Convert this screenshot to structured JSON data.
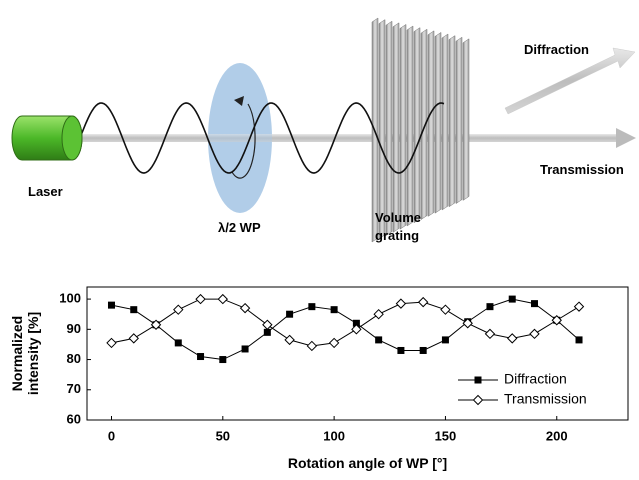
{
  "diagram": {
    "laser": "Laser",
    "waveplate": "λ/2 WP",
    "grating": [
      "Volume",
      "grating"
    ],
    "diffraction": "Diffraction",
    "transmission": "Transmission"
  },
  "chart_data": {
    "type": "line",
    "ylabel": [
      "Normalized",
      "intensity [%]"
    ],
    "xlabel": "Rotation angle of WP [°]",
    "x": [
      0,
      10,
      20,
      30,
      40,
      50,
      60,
      70,
      80,
      90,
      100,
      110,
      120,
      130,
      140,
      150,
      160,
      170,
      180,
      190,
      200,
      210
    ],
    "series": [
      {
        "name": "Diffraction",
        "color": "#000000",
        "marker": "square",
        "values": [
          98,
          96.5,
          91.5,
          85.5,
          81,
          80,
          83.5,
          89,
          95,
          97.5,
          96.5,
          92,
          86.5,
          83,
          83,
          86.5,
          92.5,
          97.5,
          100,
          98.5,
          93,
          86.5
        ]
      },
      {
        "name": "Transmission",
        "color": "#000000",
        "marker": "diamond",
        "values": [
          85.5,
          87,
          91.5,
          96.5,
          100,
          100,
          97,
          91.5,
          86.5,
          84.5,
          85.5,
          90,
          95,
          98.5,
          99,
          96.5,
          92,
          88.5,
          87,
          88.5,
          93,
          97.5
        ]
      }
    ],
    "xlim": [
      -11,
      232
    ],
    "xticks": [
      0,
      50,
      100,
      150,
      200
    ],
    "ylim": [
      60,
      104
    ],
    "yticks": [
      60,
      70,
      80,
      90,
      100
    ],
    "legend": "lower right"
  }
}
